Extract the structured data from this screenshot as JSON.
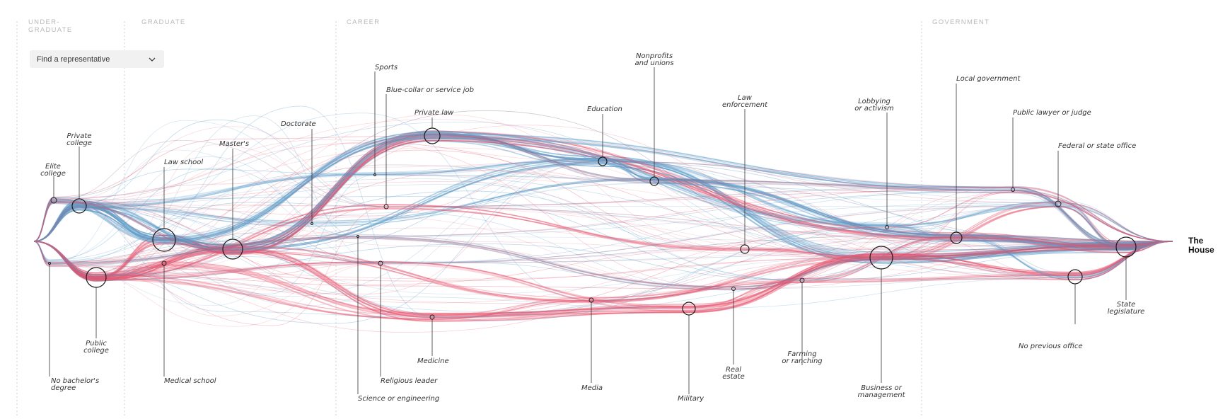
{
  "finder": {
    "label": "Find a representative",
    "icon": "chevron-down-icon"
  },
  "sections": [
    {
      "id": "undergrad",
      "lines": [
        "UNDER-",
        "GRADUATE"
      ]
    },
    {
      "id": "graduate",
      "lines": [
        "GRADUATE"
      ]
    },
    {
      "id": "career",
      "lines": [
        "CAREER"
      ]
    },
    {
      "id": "government",
      "lines": [
        "GOVERNMENT"
      ]
    }
  ],
  "nodes": [
    {
      "id": "elite",
      "lines": [
        "Elite",
        "college"
      ]
    },
    {
      "id": "private_college",
      "lines": [
        "Private",
        "college"
      ]
    },
    {
      "id": "public_college",
      "lines": [
        "Public",
        "college"
      ]
    },
    {
      "id": "no_bachelor",
      "lines": [
        "No bachelor's",
        "degree"
      ]
    },
    {
      "id": "law_school",
      "lines": [
        "Law school"
      ]
    },
    {
      "id": "medical_school",
      "lines": [
        "Medical school"
      ]
    },
    {
      "id": "masters",
      "lines": [
        "Master's"
      ]
    },
    {
      "id": "doctorate",
      "lines": [
        "Doctorate"
      ]
    },
    {
      "id": "sports",
      "lines": [
        "Sports"
      ]
    },
    {
      "id": "blue_collar",
      "lines": [
        "Blue-collar or service job"
      ]
    },
    {
      "id": "science",
      "lines": [
        "Science or engineering"
      ]
    },
    {
      "id": "religious",
      "lines": [
        "Religious leader"
      ]
    },
    {
      "id": "private_law",
      "lines": [
        "Private law"
      ]
    },
    {
      "id": "medicine",
      "lines": [
        "Medicine"
      ]
    },
    {
      "id": "media",
      "lines": [
        "Media"
      ]
    },
    {
      "id": "education",
      "lines": [
        "Education"
      ]
    },
    {
      "id": "nonprofits",
      "lines": [
        "Nonprofits",
        "and unions"
      ]
    },
    {
      "id": "military",
      "lines": [
        "Military"
      ]
    },
    {
      "id": "real_estate",
      "lines": [
        "Real",
        "estate"
      ]
    },
    {
      "id": "law_enforcement",
      "lines": [
        "Law",
        "enforcement"
      ]
    },
    {
      "id": "farming",
      "lines": [
        "Farming",
        "or ranching"
      ]
    },
    {
      "id": "lobbying",
      "lines": [
        "Lobbying",
        "or activism"
      ]
    },
    {
      "id": "business",
      "lines": [
        "Business or",
        "management"
      ]
    },
    {
      "id": "local_gov",
      "lines": [
        "Local government"
      ]
    },
    {
      "id": "public_lawyer",
      "lines": [
        "Public lawyer or judge"
      ]
    },
    {
      "id": "federal_state",
      "lines": [
        "Federal or state office"
      ]
    },
    {
      "id": "no_previous",
      "lines": [
        "No previous office"
      ]
    },
    {
      "id": "state_leg",
      "lines": [
        "State",
        "legislature"
      ]
    }
  ],
  "final": {
    "lines": [
      "The",
      "House"
    ]
  },
  "colors": {
    "democrat": "#5b9cc8",
    "republican": "#e8556f",
    "mixed": "#8a6f93",
    "divider": "#cfcfcf"
  }
}
